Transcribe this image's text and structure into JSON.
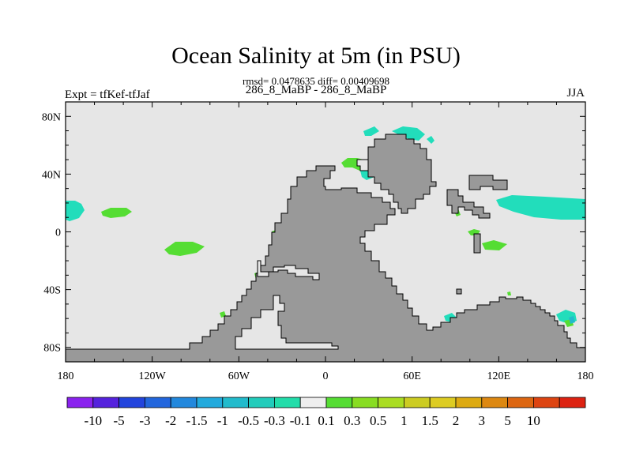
{
  "title": "Ocean Salinity at 5m (in PSU)",
  "subtitle": "rmsd= 0.0478635 diff= 0.00409698",
  "subtitle2": "286_8_MaBP - 286_8_MaBP",
  "left_string": "Expt = tfKef-tfJaf",
  "right_string": "JJA",
  "colors": {
    "ocean": "#e6e6e6",
    "land": "#999999",
    "positive_small": "#55dd33",
    "negative_small": "#22ddbb",
    "negative_mid": "#22bbcc"
  },
  "map": {
    "lon_range": [
      -180,
      180
    ],
    "lat_range": [
      -90,
      90
    ],
    "x_ticks": [
      {
        "lon": -180,
        "label": "180"
      },
      {
        "lon": -120,
        "label": "120W"
      },
      {
        "lon": -60,
        "label": "60W"
      },
      {
        "lon": 0,
        "label": "0"
      },
      {
        "lon": 60,
        "label": "60E"
      },
      {
        "lon": 120,
        "label": "120E"
      },
      {
        "lon": 180,
        "label": "180"
      }
    ],
    "y_ticks": [
      {
        "lat": 80,
        "label": "80N"
      },
      {
        "lat": 40,
        "label": "40N"
      },
      {
        "lat": 0,
        "label": "0"
      },
      {
        "lat": -40,
        "label": "40S"
      },
      {
        "lat": -80,
        "label": "80S"
      }
    ]
  },
  "colorbar": {
    "colors": [
      "#8a22ee",
      "#5522dd",
      "#2244dd",
      "#2266dd",
      "#2288dd",
      "#22aadd",
      "#22bbcc",
      "#22ccbb",
      "#22ddaa",
      "#eeeeee",
      "#55dd33",
      "#88dd22",
      "#aadd22",
      "#cccc22",
      "#ddcc22",
      "#ddaa11",
      "#dd8811",
      "#dd6611",
      "#dd4411",
      "#dd2211"
    ],
    "labels": [
      "-10",
      "-5",
      "-3",
      "-2",
      "-1.5",
      "-1",
      "-0.5",
      "-0.3",
      "-0.1",
      "0.1",
      "0.3",
      "0.5",
      "1",
      "1.5",
      "2",
      "3",
      "5",
      "10"
    ]
  }
}
